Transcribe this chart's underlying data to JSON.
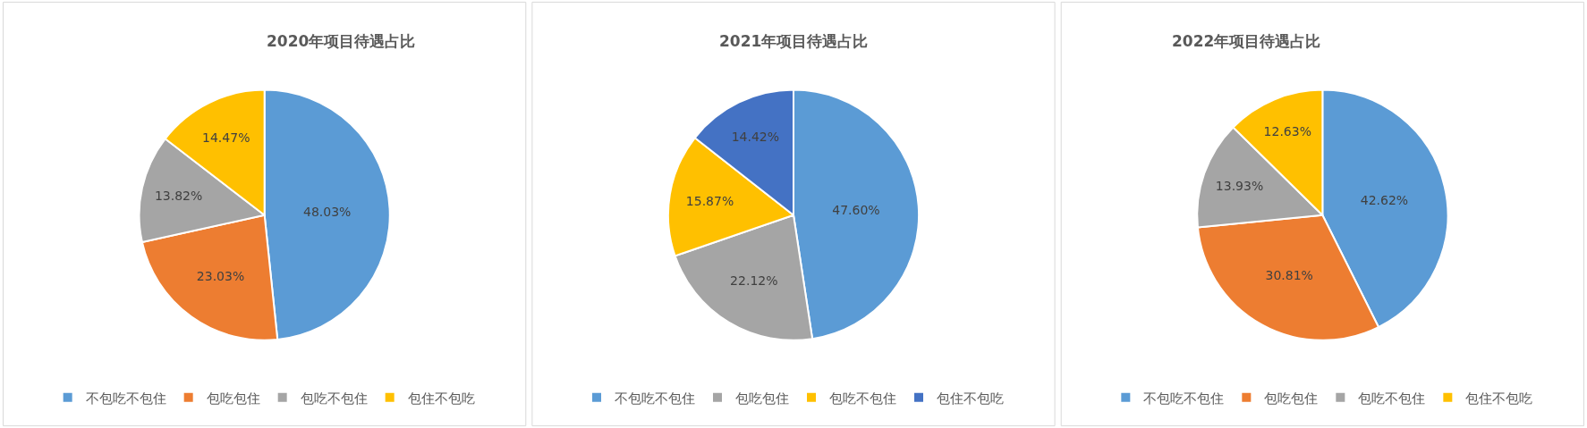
{
  "chart_data": [
    {
      "type": "pie",
      "title": "2020年项目待遇占比",
      "categories": [
        "不包吃不包住",
        "包吃包住",
        "包吃不包住",
        "包住不包吃"
      ],
      "values": [
        48.03,
        23.03,
        13.82,
        14.47
      ],
      "value_labels": [
        "48.03%",
        "23.03%",
        "13.82%",
        "14.47%"
      ],
      "colors": [
        "#5b9bd5",
        "#ed7d31",
        "#a5a5a5",
        "#ffc000"
      ],
      "legend": "bottom"
    },
    {
      "type": "pie",
      "title": "2021年项目待遇占比",
      "categories": [
        "不包吃不包住",
        "包吃包住",
        "包吃不包住",
        "包住不包吃"
      ],
      "values": [
        47.6,
        22.12,
        15.87,
        14.42
      ],
      "value_labels": [
        "47.60%",
        "22.12%",
        "15.87%",
        "14.42%"
      ],
      "colors": [
        "#5b9bd5",
        "#a5a5a5",
        "#ffc000",
        "#4472c4"
      ],
      "legend": "bottom"
    },
    {
      "type": "pie",
      "title": "2022年项目待遇占比",
      "categories": [
        "不包吃不包住",
        "包吃包住",
        "包吃不包住",
        "包住不包吃"
      ],
      "values": [
        42.62,
        30.81,
        13.93,
        12.63
      ],
      "value_labels": [
        "42.62%",
        "30.81%",
        "13.93%",
        "12.63%"
      ],
      "colors": [
        "#5b9bd5",
        "#ed7d31",
        "#a5a5a5",
        "#ffc000"
      ],
      "legend": "bottom"
    }
  ]
}
